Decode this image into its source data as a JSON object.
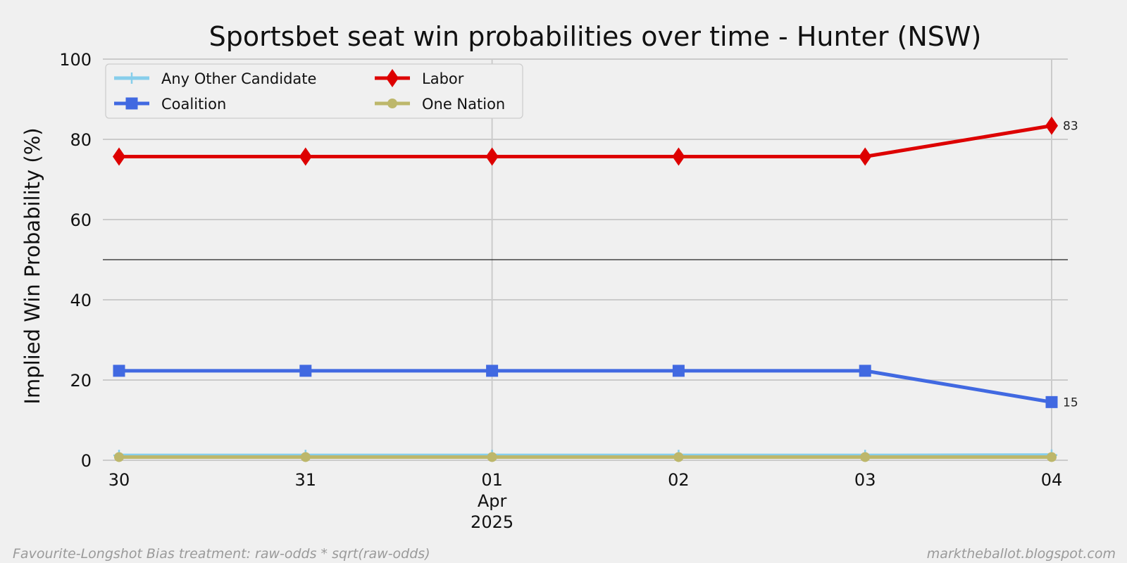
{
  "chart_data": {
    "type": "line",
    "title": "Sportsbet seat win probabilities over time - Hunter (NSW)",
    "xlabel": "",
    "ylabel": "Implied Win Probability (%)",
    "x": [
      "2025-03-30",
      "2025-03-31",
      "2025-04-01",
      "2025-04-02",
      "2025-04-03",
      "2025-04-04"
    ],
    "x_tick_labels": [
      "30",
      "31",
      "01",
      "02",
      "03",
      "04"
    ],
    "x_month_label": "Apr",
    "x_year_label": "2025",
    "ylim": [
      0,
      100
    ],
    "y_ticks": [
      0,
      20,
      40,
      60,
      80,
      100
    ],
    "reference_line": 50,
    "grid": true,
    "legend": {
      "placement": "top-left",
      "columns": 2
    },
    "series": [
      {
        "name": "Any Other Candidate",
        "color": "#87ceeb",
        "marker": "plus",
        "values": [
          1.2,
          1.2,
          1.2,
          1.2,
          1.2,
          1.3
        ]
      },
      {
        "name": "Coalition",
        "color": "#4169e1",
        "marker": "square",
        "values": [
          22.3,
          22.3,
          22.3,
          22.3,
          22.3,
          14.5
        ],
        "end_label": "15"
      },
      {
        "name": "Labor",
        "color": "#dd0000",
        "marker": "diamond",
        "values": [
          75.7,
          75.7,
          75.7,
          75.7,
          75.7,
          83.4
        ],
        "end_label": "83"
      },
      {
        "name": "One Nation",
        "color": "#bdb76b",
        "marker": "circle",
        "values": [
          0.8,
          0.8,
          0.8,
          0.8,
          0.8,
          0.8
        ]
      }
    ],
    "legend_order": [
      "Any Other Candidate",
      "Coalition",
      "Labor",
      "One Nation"
    ]
  },
  "footer": {
    "left": "Favourite-Longshot Bias treatment: raw-odds * sqrt(raw-odds)",
    "right": "marktheballot.blogspot.com"
  }
}
